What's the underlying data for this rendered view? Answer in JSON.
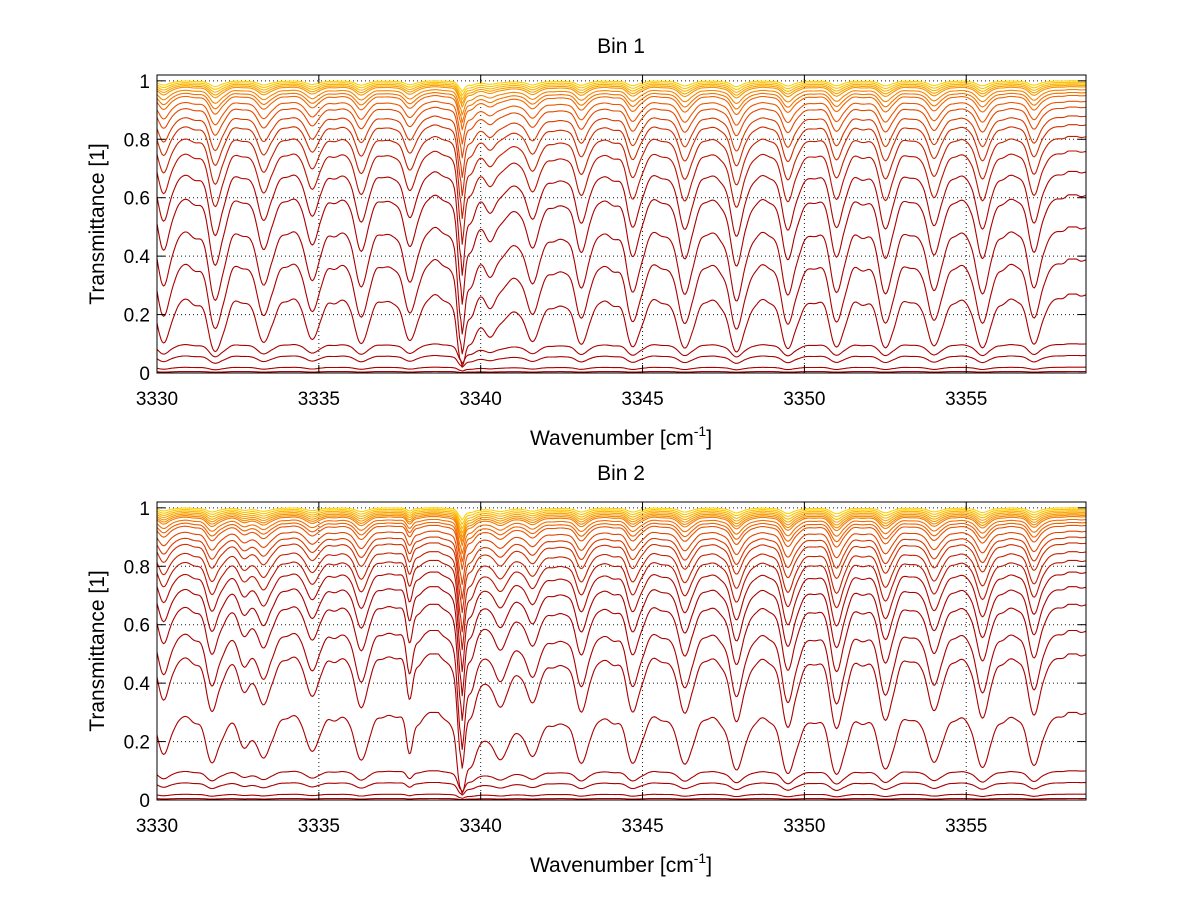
{
  "chart_data": [
    {
      "type": "line",
      "title": "Bin 1",
      "xlabel": "Wavenumber [cm",
      "xlabel_sup": "-1",
      "xlabel_end": "]",
      "ylabel": "Transmittance [1]",
      "xlim": [
        3330,
        3358.7
      ],
      "ylim": [
        0,
        1.02
      ],
      "grid": true,
      "xticks": [
        3330,
        3335,
        3340,
        3345,
        3350,
        3355
      ],
      "yticks": [
        0,
        0.2,
        0.4,
        0.6,
        0.8,
        1
      ],
      "ytick_labels": [
        "0",
        "0.2",
        "0.4",
        "0.6",
        "0.8",
        "1"
      ],
      "xtick_labels": [
        "3330",
        "3335",
        "3340",
        "3345",
        "3350",
        "3355"
      ],
      "lines_wavenumber": [
        3330.2,
        3331.8,
        3333.3,
        3334.8,
        3336.3,
        3337.8,
        3339.4,
        3340.3,
        3341.6,
        3343.1,
        3344.7,
        3346.3,
        3347.9,
        3349.5,
        3351.0,
        3352.5,
        3354.0,
        3355.5,
        3357.1
      ],
      "baseline_transmittance": [
        1.0,
        0.995,
        0.99,
        0.985,
        0.98,
        0.97,
        0.96,
        0.95,
        0.93,
        0.91,
        0.88,
        0.85,
        0.81,
        0.76,
        0.69,
        0.61,
        0.5,
        0.39,
        0.27,
        0.1,
        0.06,
        0.02,
        0.005
      ],
      "line_depths": [
        0.38,
        0.5,
        0.45,
        0.42,
        0.45,
        0.35,
        0.9,
        0.2,
        0.3,
        0.42,
        0.45,
        0.46,
        0.5,
        0.5,
        0.5,
        0.5,
        0.48,
        0.48,
        0.45
      ],
      "color_top": "#ffd200",
      "color_mid": "#f05a00",
      "color_bottom": "#aa0000"
    },
    {
      "type": "line",
      "title": "Bin 2",
      "xlabel": "Wavenumber [cm",
      "xlabel_sup": "-1",
      "xlabel_end": "]",
      "ylabel": "Transmittance [1]",
      "xlim": [
        3330,
        3358.7
      ],
      "ylim": [
        0,
        1.02
      ],
      "grid": true,
      "xticks": [
        3330,
        3335,
        3340,
        3345,
        3350,
        3355
      ],
      "yticks": [
        0,
        0.2,
        0.4,
        0.6,
        0.8,
        1
      ],
      "ytick_labels": [
        "0",
        "0.2",
        "0.4",
        "0.6",
        "0.8",
        "1"
      ],
      "xtick_labels": [
        "3330",
        "3335",
        "3340",
        "3345",
        "3350",
        "3355"
      ],
      "lines_wavenumber": [
        3330.2,
        3331.7,
        3332.7,
        3333.3,
        3334.8,
        3336.3,
        3337.8,
        3339.4,
        3340.6,
        3341.6,
        3343.1,
        3344.7,
        3346.3,
        3347.9,
        3349.5,
        3351.0,
        3352.5,
        3354.0,
        3355.5,
        3357.1
      ],
      "baseline_transmittance": [
        1.0,
        0.995,
        0.99,
        0.985,
        0.98,
        0.975,
        0.97,
        0.96,
        0.95,
        0.94,
        0.92,
        0.9,
        0.88,
        0.85,
        0.82,
        0.78,
        0.73,
        0.67,
        0.58,
        0.5,
        0.3,
        0.1,
        0.06,
        0.02,
        0.005
      ],
      "line_depths": [
        0.3,
        0.35,
        0.2,
        0.3,
        0.3,
        0.32,
        0.28,
        0.9,
        0.25,
        0.3,
        0.42,
        0.45,
        0.46,
        0.5,
        0.5,
        0.5,
        0.5,
        0.48,
        0.48,
        0.45
      ],
      "color_top": "#ffd200",
      "color_mid": "#f05a00",
      "color_bottom": "#aa0000"
    }
  ]
}
